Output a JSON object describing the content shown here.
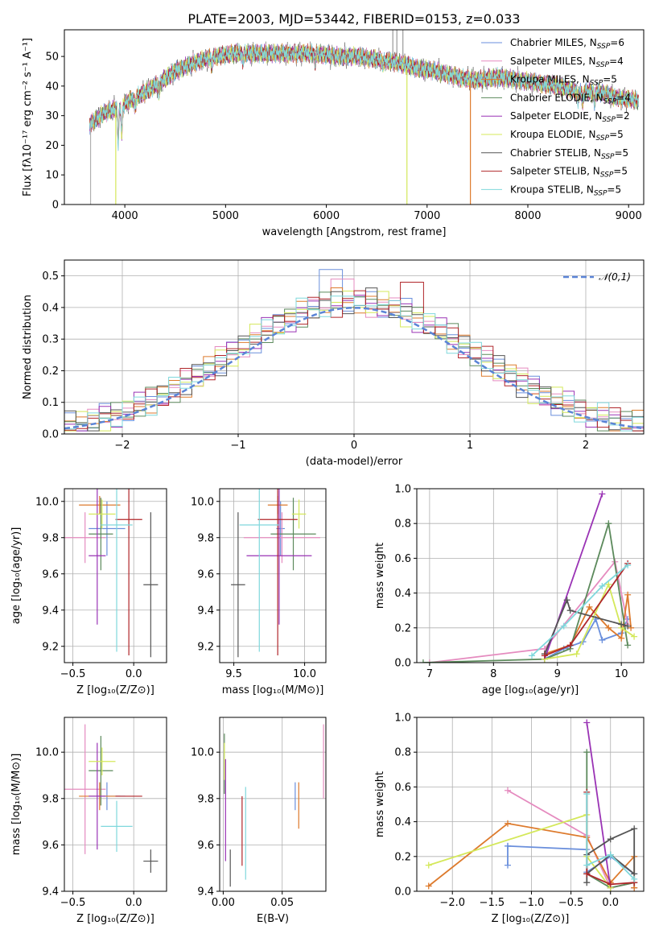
{
  "figure": {
    "title": "PLATE=2003, MJD=53442, FIBERID=0153, z=0.033"
  },
  "models": [
    {
      "name": "Chabrier MILES, N_SSP=6",
      "label_base": "Chabrier MILES, N",
      "label_sub": "SSP",
      "label_tail": "=6",
      "color": "#6a8fdc"
    },
    {
      "name": "Salpeter MILES, N_SSP=4",
      "label_base": "Salpeter MILES, N",
      "label_sub": "SSP",
      "label_tail": "=4",
      "color": "#e58bbf"
    },
    {
      "name": "Kroupa MILES, N_SSP=5",
      "label_base": "Kroupa MILES, N",
      "label_sub": "SSP",
      "label_tail": "=5",
      "color": "#dd7a2c"
    },
    {
      "name": "Chabrier ELODIE, N_SSP=4",
      "label_base": "Chabrier ELODIE, N",
      "label_sub": "SSP",
      "label_tail": "=4",
      "color": "#5c8a5c"
    },
    {
      "name": "Salpeter ELODIE, N_SSP=2",
      "label_base": "Salpeter ELODIE, N",
      "label_sub": "SSP",
      "label_tail": "=2",
      "color": "#9a33b5"
    },
    {
      "name": "Kroupa ELODIE, N_SSP=5",
      "label_base": "Kroupa ELODIE, N",
      "label_sub": "SSP",
      "label_tail": "=5",
      "color": "#d4e85a"
    },
    {
      "name": "Chabrier STELIB, N_SSP=5",
      "label_base": "Chabrier STELIB, N",
      "label_sub": "SSP",
      "label_tail": "=5",
      "color": "#555555"
    },
    {
      "name": "Salpeter STELIB, N_SSP=5",
      "label_base": "Salpeter STELIB, N",
      "label_sub": "SSP",
      "label_tail": "=5",
      "color": "#b0262a"
    },
    {
      "name": "Kroupa STELIB, N_SSP=5",
      "label_base": "Kroupa STELIB, N",
      "label_sub": "SSP",
      "label_tail": "=5",
      "color": "#7fd8dc"
    }
  ],
  "chart_data": [
    {
      "id": "spectrum",
      "type": "line",
      "title": "PLATE=2003, MJD=53442, FIBERID=0153, z=0.033",
      "xlabel": "wavelength [Angstrom, rest frame]",
      "ylabel": "Flux [fλ10⁻¹⁷ erg cm⁻² s⁻¹ A⁻¹]",
      "xlim": [
        3400,
        9150
      ],
      "ylim": [
        0,
        59
      ],
      "xticks": [
        4000,
        5000,
        6000,
        7000,
        8000,
        9000
      ],
      "yticks": [
        0,
        10,
        20,
        30,
        40,
        50
      ],
      "grid": false,
      "legend": "upper-right",
      "continuum": [
        [
          3650,
          27
        ],
        [
          3800,
          31
        ],
        [
          3950,
          33
        ],
        [
          4100,
          36
        ],
        [
          4300,
          40
        ],
        [
          4500,
          45
        ],
        [
          4700,
          48
        ],
        [
          4900,
          50
        ],
        [
          5100,
          51
        ],
        [
          5300,
          51
        ],
        [
          5500,
          51
        ],
        [
          5700,
          51
        ],
        [
          5900,
          51
        ],
        [
          6100,
          50
        ],
        [
          6300,
          50
        ],
        [
          6500,
          49
        ],
        [
          6700,
          48
        ],
        [
          6900,
          46
        ],
        [
          7100,
          45
        ],
        [
          7300,
          43
        ],
        [
          7500,
          42
        ],
        [
          7700,
          43
        ],
        [
          7900,
          42
        ],
        [
          8100,
          41
        ],
        [
          8300,
          40
        ],
        [
          8500,
          38
        ],
        [
          8700,
          38
        ],
        [
          8900,
          36
        ],
        [
          9100,
          35
        ]
      ]
    },
    {
      "id": "residuals",
      "type": "histogram",
      "xlabel": "(data-model)/error",
      "ylabel": "Normed distribution",
      "xlim": [
        -2.5,
        2.5
      ],
      "ylim": [
        0,
        0.55
      ],
      "xticks": [
        -2,
        -1,
        0,
        1,
        2
      ],
      "yticks": [
        0.0,
        0.1,
        0.2,
        0.3,
        0.4,
        0.5
      ],
      "grid": true,
      "bin_width": 0.1,
      "reference_curve": "𝒩(0,1)",
      "legend": "upper-right"
    },
    {
      "id": "age_vs_Z",
      "type": "errorbar",
      "xlabel": "Z [log₁₀(Z/Z⊙)]",
      "ylabel": "age  [log₁₀(age/yr)]",
      "xlim": [
        -0.57,
        0.27
      ],
      "ylim": [
        9.11,
        10.07
      ],
      "xticks": [
        -0.5,
        0.0
      ],
      "yticks": [
        9.2,
        9.4,
        9.6,
        9.8,
        10.0
      ],
      "grid": true,
      "points": [
        {
          "x": -0.22,
          "y": 9.85,
          "xerr": 0.15,
          "yerr": 0.15
        },
        {
          "x": -0.4,
          "y": 9.8,
          "xerr": 0.17,
          "yerr": 0.14
        },
        {
          "x": -0.28,
          "y": 9.98,
          "xerr": 0.17,
          "yerr": 0.05
        },
        {
          "x": -0.27,
          "y": 9.82,
          "xerr": 0.1,
          "yerr": 0.2
        },
        {
          "x": -0.3,
          "y": 9.7,
          "xerr": 0.07,
          "yerr": 0.38
        },
        {
          "x": -0.26,
          "y": 9.93,
          "xerr": 0.11,
          "yerr": 0.08
        },
        {
          "x": 0.14,
          "y": 9.54,
          "xerr": 0.06,
          "yerr": 0.4
        },
        {
          "x": -0.04,
          "y": 9.9,
          "xerr": 0.11,
          "yerr": 0.75
        },
        {
          "x": -0.14,
          "y": 9.87,
          "xerr": 0.13,
          "yerr": 0.7
        }
      ]
    },
    {
      "id": "age_vs_mass",
      "type": "errorbar",
      "xlabel": "mass [log₁₀(M/M⊙)]",
      "ylabel": "",
      "xlim": [
        9.4,
        10.15
      ],
      "ylim": [
        9.11,
        10.07
      ],
      "xticks": [
        9.5,
        10.0
      ],
      "yticks": [
        9.2,
        9.4,
        9.6,
        9.8,
        10.0
      ],
      "grid": true,
      "points": [
        {
          "x": 9.83,
          "y": 9.85,
          "xerr": 0.03,
          "yerr": 0.15
        },
        {
          "x": 9.84,
          "y": 9.8,
          "xerr": 0.27,
          "yerr": 0.14
        },
        {
          "x": 9.81,
          "y": 9.98,
          "xerr": 0.07,
          "yerr": 0.05
        },
        {
          "x": 9.92,
          "y": 9.82,
          "xerr": 0.16,
          "yerr": 0.2
        },
        {
          "x": 9.82,
          "y": 9.7,
          "xerr": 0.23,
          "yerr": 0.38
        },
        {
          "x": 9.96,
          "y": 9.93,
          "xerr": 0.05,
          "yerr": 0.08
        },
        {
          "x": 9.53,
          "y": 9.54,
          "xerr": 0.05,
          "yerr": 0.4
        },
        {
          "x": 9.81,
          "y": 9.9,
          "xerr": 0.14,
          "yerr": 0.75
        },
        {
          "x": 9.68,
          "y": 9.87,
          "xerr": 0.14,
          "yerr": 0.7
        }
      ]
    },
    {
      "id": "weight_vs_age",
      "type": "line",
      "xlabel": "age  [log₁₀(age/yr)]",
      "ylabel": "mass weight",
      "xlim": [
        6.8,
        10.35
      ],
      "ylim": [
        0,
        1.0
      ],
      "xticks": [
        7,
        8,
        9,
        10
      ],
      "yticks": [
        0.0,
        0.2,
        0.4,
        0.6,
        0.8,
        1.0
      ],
      "grid": true,
      "series": [
        {
          "points": [
            [
              8.8,
              0.02
            ],
            [
              9.1,
              0.08
            ],
            [
              9.4,
              0.12
            ],
            [
              9.6,
              0.25
            ],
            [
              9.7,
              0.13
            ],
            [
              10.0,
              0.17
            ],
            [
              10.1,
              0.25
            ]
          ]
        },
        {
          "points": [
            [
              7.0,
              0.0
            ],
            [
              8.8,
              0.08
            ],
            [
              9.9,
              0.58
            ],
            [
              10.1,
              0.22
            ]
          ]
        },
        {
          "points": [
            [
              8.8,
              0.05
            ],
            [
              9.2,
              0.1
            ],
            [
              9.5,
              0.32
            ],
            [
              9.8,
              0.2
            ],
            [
              10.0,
              0.14
            ],
            [
              10.1,
              0.39
            ],
            [
              10.15,
              0.2
            ]
          ]
        },
        {
          "points": [
            [
              6.9,
              0.0
            ],
            [
              8.8,
              0.02
            ],
            [
              9.2,
              0.08
            ],
            [
              9.8,
              0.8
            ],
            [
              10.1,
              0.1
            ]
          ]
        },
        {
          "points": [
            [
              8.8,
              0.02
            ],
            [
              9.7,
              0.97
            ]
          ]
        },
        {
          "points": [
            [
              8.8,
              0.02
            ],
            [
              9.3,
              0.05
            ],
            [
              9.8,
              0.45
            ],
            [
              10.0,
              0.2
            ],
            [
              10.2,
              0.15
            ]
          ]
        },
        {
          "points": [
            [
              8.8,
              0.05
            ],
            [
              9.15,
              0.36
            ],
            [
              9.2,
              0.3
            ],
            [
              10.0,
              0.22
            ],
            [
              10.1,
              0.21
            ]
          ]
        },
        {
          "points": [
            [
              8.8,
              0.04
            ],
            [
              9.2,
              0.1
            ],
            [
              10.1,
              0.57
            ]
          ]
        },
        {
          "points": [
            [
              8.6,
              0.04
            ],
            [
              9.1,
              0.21
            ],
            [
              9.7,
              0.44
            ],
            [
              10.1,
              0.56
            ]
          ]
        }
      ]
    },
    {
      "id": "mass_vs_Z",
      "type": "errorbar",
      "xlabel": "Z [log₁₀(Z/Z⊙)]",
      "ylabel": "mass [log₁₀(M/M⊙)]",
      "xlim": [
        -0.57,
        0.27
      ],
      "ylim": [
        9.4,
        10.15
      ],
      "xticks": [
        -0.5,
        0.0
      ],
      "yticks": [
        9.4,
        9.6,
        9.8,
        10.0
      ],
      "grid": true,
      "points": [
        {
          "x": -0.22,
          "y": 9.81,
          "xerr": 0.15,
          "yerr": 0.06
        },
        {
          "x": -0.4,
          "y": 9.84,
          "xerr": 0.17,
          "yerr": 0.28
        },
        {
          "x": -0.28,
          "y": 9.81,
          "xerr": 0.17,
          "yerr": 0.06
        },
        {
          "x": -0.27,
          "y": 9.92,
          "xerr": 0.1,
          "yerr": 0.15
        },
        {
          "x": -0.3,
          "y": 9.81,
          "xerr": 0.07,
          "yerr": 0.23
        },
        {
          "x": -0.26,
          "y": 9.96,
          "xerr": 0.11,
          "yerr": 0.06
        },
        {
          "x": 0.14,
          "y": 9.53,
          "xerr": 0.06,
          "yerr": 0.05
        },
        {
          "x": -0.04,
          "y": 9.81,
          "xerr": 0.11,
          "yerr": 0.0
        },
        {
          "x": -0.14,
          "y": 9.68,
          "xerr": 0.13,
          "yerr": 0.11
        }
      ]
    },
    {
      "id": "mass_vs_EBV",
      "type": "errorbar",
      "xlabel": "E(B-V)",
      "ylabel": "",
      "xlim": [
        -0.003,
        0.087
      ],
      "ylim": [
        9.4,
        10.15
      ],
      "xticks": [
        0.0,
        0.05
      ],
      "yticks": [
        9.4,
        9.6,
        9.8,
        10.0
      ],
      "grid": true,
      "points": [
        {
          "x": 0.061,
          "y": 9.81,
          "xerr": 0,
          "yerr": 0.06
        },
        {
          "x": 0.085,
          "y": 9.96,
          "xerr": 0,
          "yerr": 0.16
        },
        {
          "x": 0.064,
          "y": 9.77,
          "xerr": 0,
          "yerr": 0.1
        },
        {
          "x": 0.001,
          "y": 9.95,
          "xerr": 0,
          "yerr": 0.13
        },
        {
          "x": 0.002,
          "y": 9.75,
          "xerr": 0,
          "yerr": 0.22
        },
        {
          "x": 0.001,
          "y": 9.96,
          "xerr": 0,
          "yerr": 0.08
        },
        {
          "x": 0.006,
          "y": 9.5,
          "xerr": 0,
          "yerr": 0.08
        },
        {
          "x": 0.016,
          "y": 9.66,
          "xerr": 0,
          "yerr": 0.15
        },
        {
          "x": 0.019,
          "y": 9.65,
          "xerr": 0,
          "yerr": 0.2
        }
      ]
    },
    {
      "id": "weight_vs_Z",
      "type": "line",
      "xlabel": "Z [log₁₀(Z/Z⊙)]",
      "ylabel": "mass weight",
      "xlim": [
        -2.45,
        0.42
      ],
      "ylim": [
        0,
        1.0
      ],
      "xticks": [
        -2.0,
        -1.5,
        -1.0,
        -0.5,
        0.0
      ],
      "yticks": [
        0.0,
        0.2,
        0.4,
        0.6,
        0.8,
        1.0
      ],
      "grid": true,
      "series": [
        {
          "points": [
            [
              -1.3,
              0.26
            ],
            [
              -1.3,
              0.15
            ],
            [
              -1.3,
              0.26
            ],
            [
              -0.3,
              0.24
            ],
            [
              -0.3,
              0.11
            ],
            [
              0.0,
              0.2
            ],
            [
              0.3,
              0.1
            ],
            [
              0.3,
              0.02
            ]
          ]
        },
        {
          "points": [
            [
              -1.3,
              0.58
            ],
            [
              -0.3,
              0.32
            ],
            [
              0.0,
              0.02
            ],
            [
              0.3,
              0.05
            ]
          ]
        },
        {
          "points": [
            [
              -2.3,
              0.03
            ],
            [
              -1.3,
              0.39
            ],
            [
              -0.3,
              0.31
            ],
            [
              0.0,
              0.05
            ],
            [
              0.3,
              0.2
            ],
            [
              0.3,
              0.02
            ]
          ]
        },
        {
          "points": [
            [
              -0.3,
              0.8
            ],
            [
              -0.3,
              0.1
            ],
            [
              0.0,
              0.02
            ],
            [
              0.3,
              0.05
            ]
          ]
        },
        {
          "points": [
            [
              -0.3,
              0.97
            ],
            [
              0.0,
              0.02
            ]
          ]
        },
        {
          "points": [
            [
              -2.3,
              0.15
            ],
            [
              -0.3,
              0.44
            ],
            [
              -0.3,
              0.2
            ],
            [
              0.0,
              0.02
            ]
          ]
        },
        {
          "points": [
            [
              -0.3,
              0.21
            ],
            [
              0.0,
              0.3
            ],
            [
              0.3,
              0.36
            ],
            [
              0.3,
              0.1
            ],
            [
              0.0,
              0.21
            ],
            [
              -0.3,
              0.1
            ],
            [
              -0.3,
              0.05
            ]
          ]
        },
        {
          "points": [
            [
              -0.3,
              0.57
            ],
            [
              -0.3,
              0.1
            ],
            [
              0.0,
              0.04
            ],
            [
              0.3,
              0.05
            ]
          ]
        },
        {
          "points": [
            [
              -0.3,
              0.56
            ],
            [
              -0.3,
              0.15
            ],
            [
              0.0,
              0.21
            ],
            [
              0.3,
              0.07
            ]
          ]
        }
      ]
    }
  ]
}
